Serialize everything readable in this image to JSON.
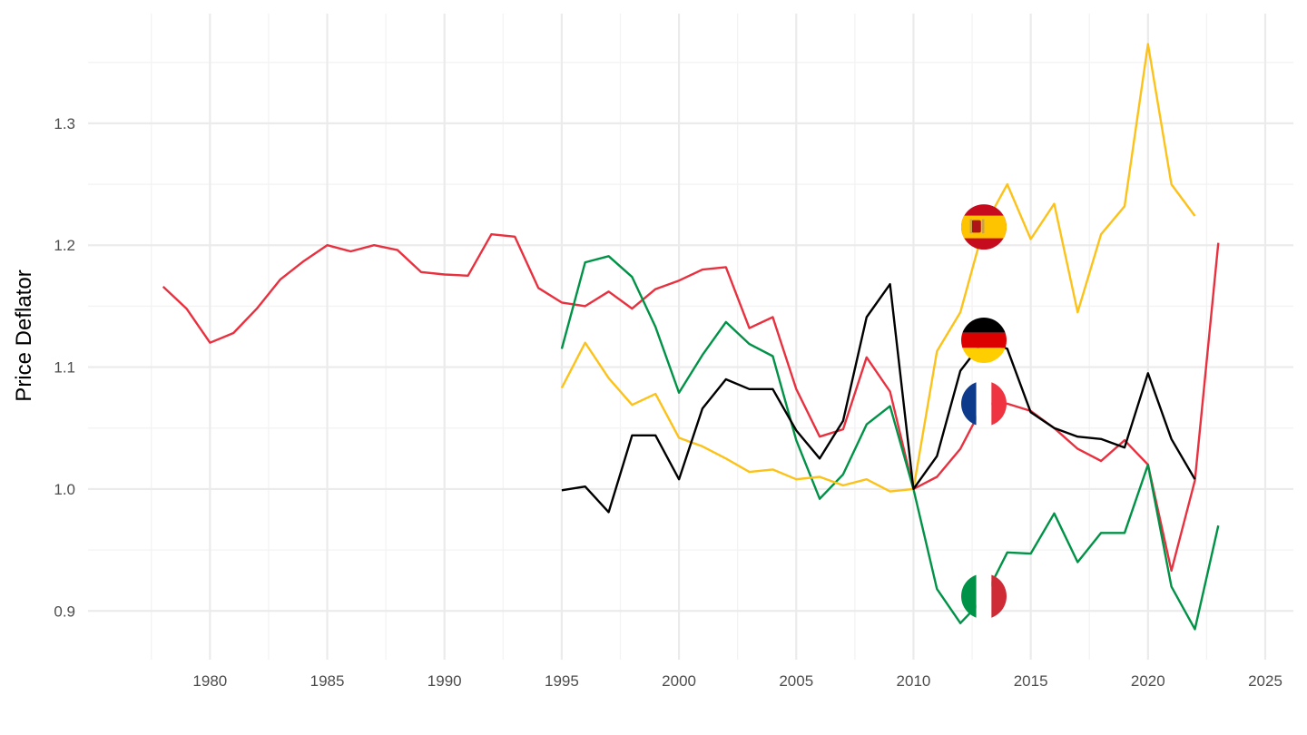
{
  "chart_data": {
    "type": "line",
    "title": "",
    "xlabel": "",
    "ylabel": "Price Deflator",
    "xlim": [
      1974.8,
      2026.2
    ],
    "ylim": [
      0.86,
      1.39
    ],
    "x_ticks": [
      1980,
      1985,
      1990,
      1995,
      2000,
      2005,
      2010,
      2015,
      2020,
      2025
    ],
    "y_ticks": [
      0.9,
      1.0,
      1.1,
      1.2,
      1.3
    ],
    "y_tick_labels": [
      "0.9",
      "1.0",
      "1.1",
      "1.2",
      "1.3"
    ],
    "grid": true,
    "legend": "flag icons on lines at 2013",
    "series": [
      {
        "id": "france",
        "flag": "france-flag-icon",
        "color": "#E8303F",
        "x": [
          1978,
          1979,
          1980,
          1981,
          1982,
          1983,
          1984,
          1985,
          1986,
          1987,
          1988,
          1989,
          1990,
          1991,
          1992,
          1993,
          1994,
          1995,
          1996,
          1997,
          1998,
          1999,
          2000,
          2001,
          2002,
          2003,
          2004,
          2005,
          2006,
          2007,
          2008,
          2009,
          2010,
          2011,
          2012,
          2013,
          2014,
          2015,
          2016,
          2017,
          2018,
          2019,
          2020,
          2021,
          2022,
          2023
        ],
        "values": [
          1.166,
          1.148,
          1.12,
          1.128,
          1.148,
          1.172,
          1.187,
          1.2,
          1.195,
          1.2,
          1.196,
          1.178,
          1.176,
          1.175,
          1.209,
          1.207,
          1.165,
          1.153,
          1.15,
          1.162,
          1.148,
          1.164,
          1.171,
          1.18,
          1.182,
          1.132,
          1.141,
          1.082,
          1.043,
          1.049,
          1.108,
          1.08,
          1.0,
          1.01,
          1.033,
          1.07,
          1.07,
          1.064,
          1.05,
          1.033,
          1.023,
          1.04,
          1.02,
          0.933,
          1.007,
          1.202
        ]
      },
      {
        "id": "italy",
        "flag": "italy-flag-icon",
        "color": "#009246",
        "x": [
          1995,
          1996,
          1997,
          1998,
          1999,
          2000,
          2001,
          2002,
          2003,
          2004,
          2005,
          2006,
          2007,
          2008,
          2009,
          2010,
          2011,
          2012,
          2013,
          2014,
          2015,
          2016,
          2017,
          2018,
          2019,
          2020,
          2021,
          2022,
          2023
        ],
        "values": [
          1.115,
          1.186,
          1.191,
          1.174,
          1.133,
          1.079,
          1.11,
          1.137,
          1.119,
          1.109,
          1.04,
          0.992,
          1.012,
          1.053,
          1.068,
          1.0,
          0.918,
          0.89,
          0.91,
          0.948,
          0.947,
          0.98,
          0.94,
          0.964,
          0.964,
          1.02,
          0.92,
          0.885,
          0.97
        ]
      },
      {
        "id": "spain",
        "flag": "spain-flag-icon",
        "color": "#FCC219",
        "x": [
          1995,
          1996,
          1997,
          1998,
          1999,
          2000,
          2001,
          2002,
          2003,
          2004,
          2005,
          2006,
          2007,
          2008,
          2009,
          2010,
          2011,
          2012,
          2013,
          2014,
          2015,
          2016,
          2017,
          2018,
          2019,
          2020,
          2021,
          2022
        ],
        "values": [
          1.083,
          1.12,
          1.091,
          1.069,
          1.078,
          1.042,
          1.035,
          1.025,
          1.014,
          1.016,
          1.008,
          1.01,
          1.003,
          1.008,
          0.998,
          1.0,
          1.113,
          1.145,
          1.215,
          1.25,
          1.205,
          1.234,
          1.145,
          1.209,
          1.232,
          1.365,
          1.25,
          1.224
        ]
      },
      {
        "id": "germany",
        "flag": "germany-flag-icon",
        "color": "#000000",
        "x": [
          1995,
          1996,
          1997,
          1998,
          1999,
          2000,
          2001,
          2002,
          2003,
          2004,
          2005,
          2006,
          2007,
          2008,
          2009,
          2010,
          2011,
          2012,
          2013,
          2014,
          2015,
          2016,
          2017,
          2018,
          2019,
          2020,
          2021,
          2022
        ],
        "values": [
          0.999,
          1.002,
          0.981,
          1.044,
          1.044,
          1.008,
          1.066,
          1.09,
          1.082,
          1.082,
          1.048,
          1.025,
          1.056,
          1.141,
          1.168,
          1.0,
          1.027,
          1.097,
          1.122,
          1.115,
          1.063,
          1.05,
          1.043,
          1.041,
          1.034,
          1.095,
          1.041,
          1.008
        ]
      }
    ],
    "flags": [
      {
        "name": "spain-flag-icon",
        "year": 2013,
        "value": 1.215
      },
      {
        "name": "germany-flag-icon",
        "year": 2013,
        "value": 1.122
      },
      {
        "name": "france-flag-icon",
        "year": 2013,
        "value": 1.07
      },
      {
        "name": "italy-flag-icon",
        "year": 2013,
        "value": 0.912
      }
    ],
    "colors": {
      "grid_major": "#ebebeb",
      "grid_minor": "#f3f3f3",
      "tick_text": "#4d4d4d"
    }
  }
}
